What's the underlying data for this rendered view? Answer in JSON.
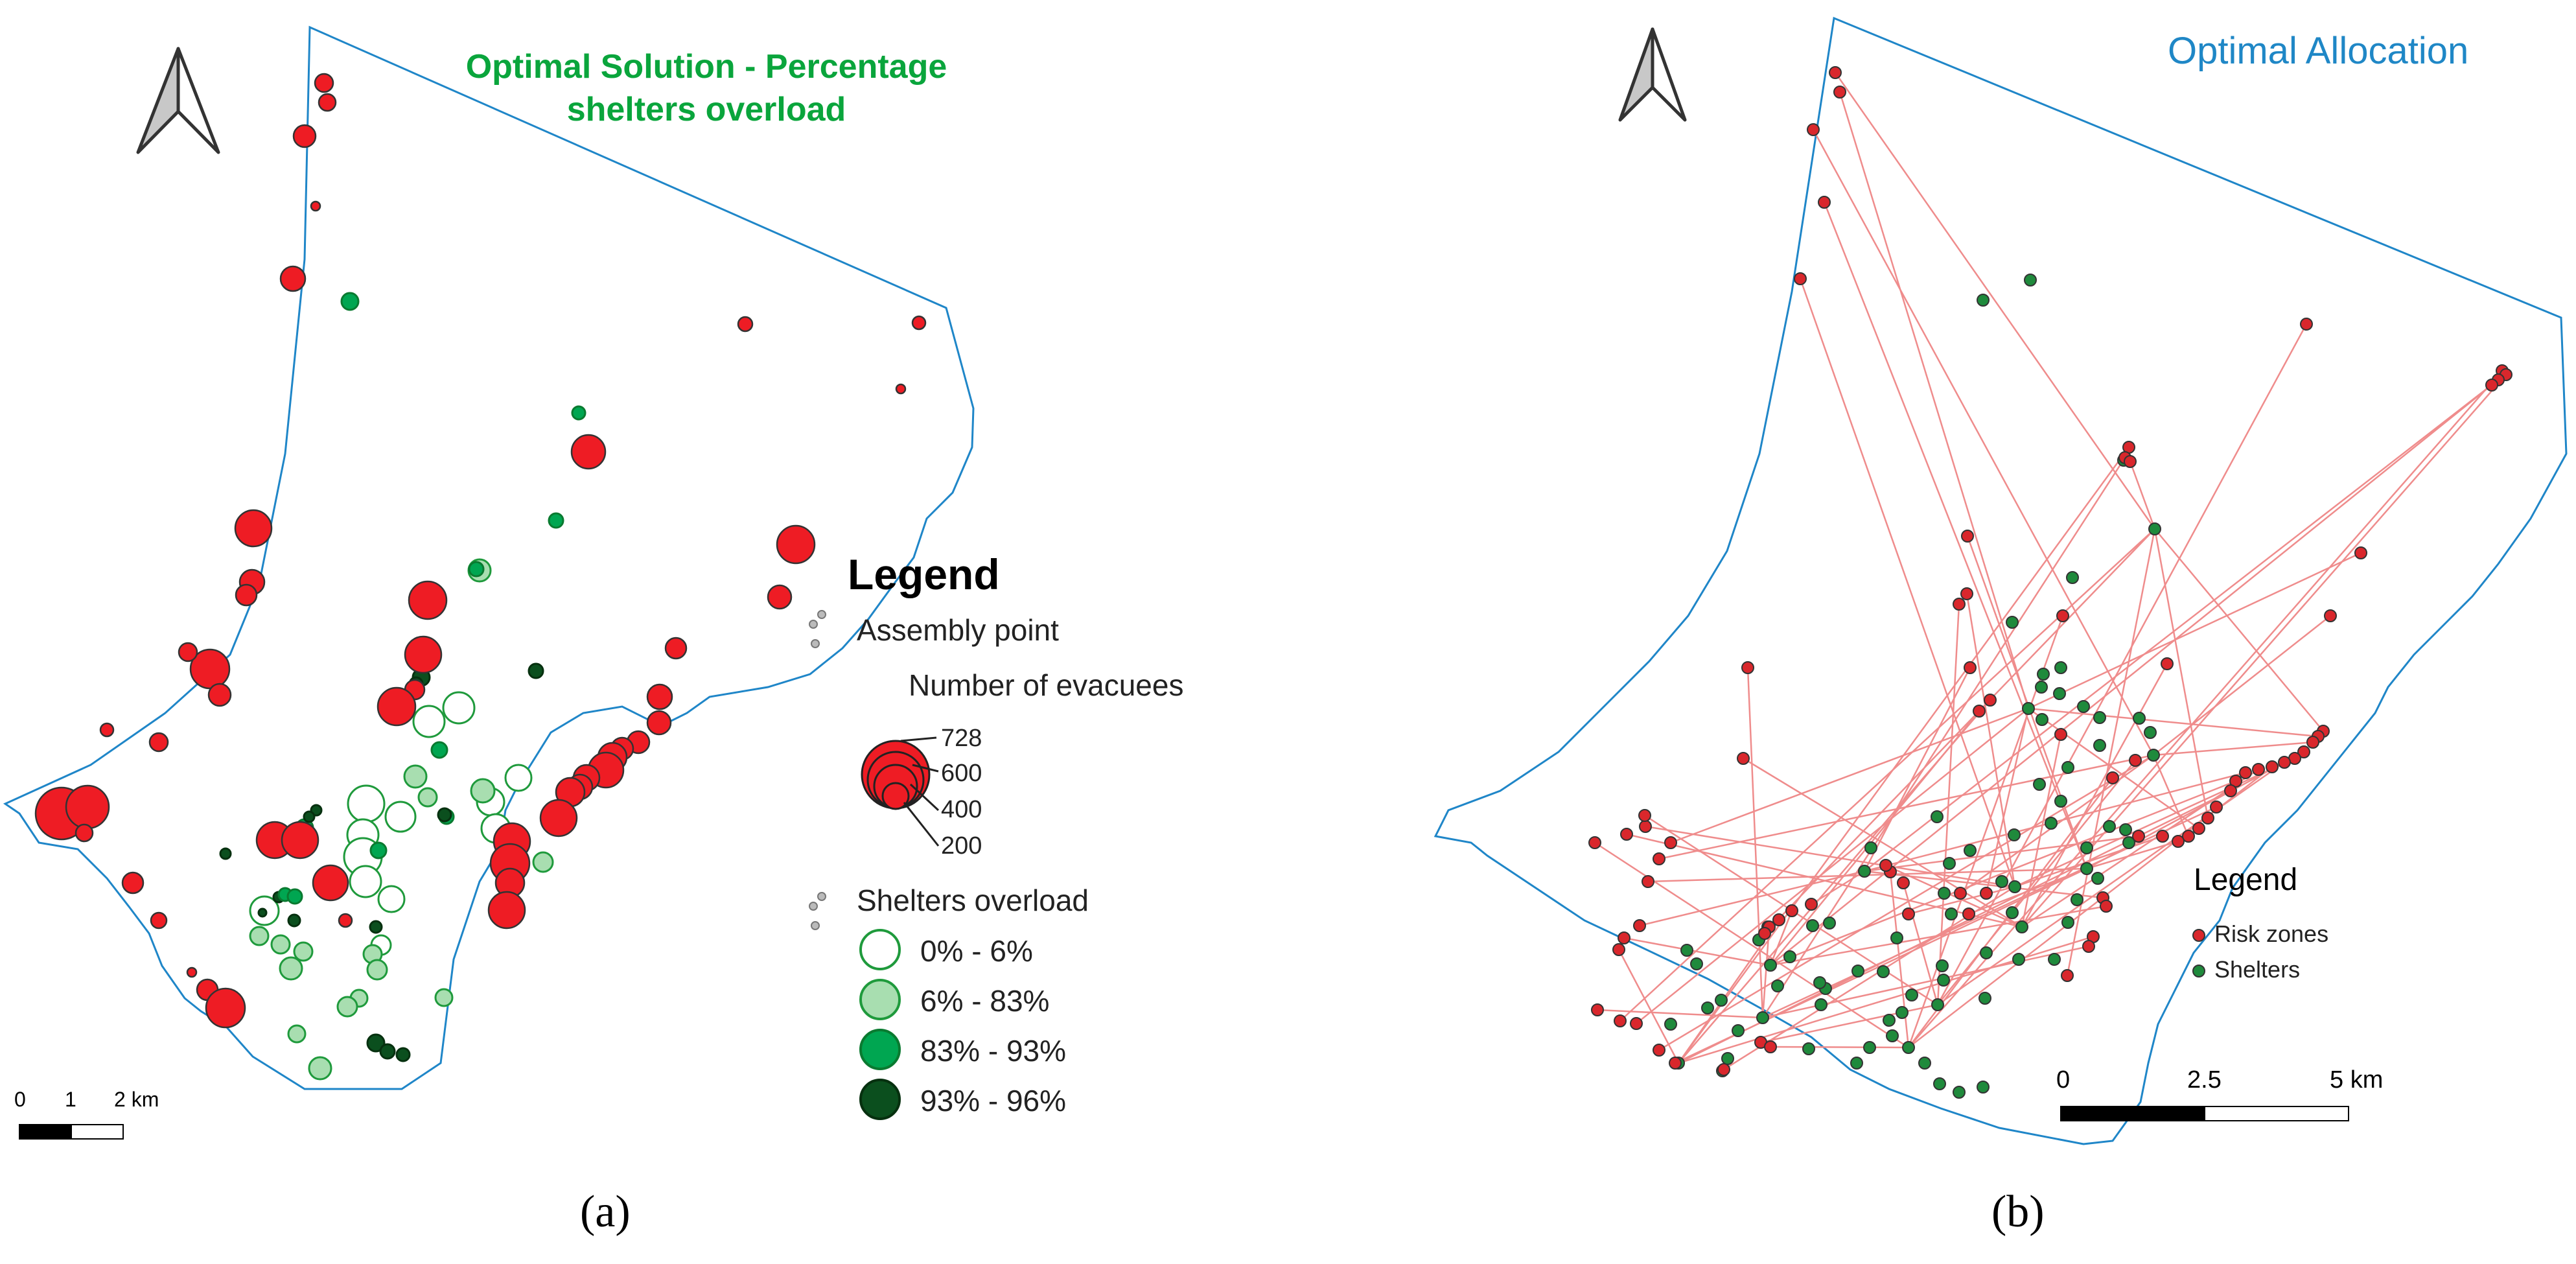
{
  "panel_a": {
    "title": "Optimal Solution - Percentage shelters overload",
    "caption": "(a)",
    "legend": {
      "title": "Legend",
      "assembly_label": "Assembly point",
      "size_title": "Number of evacuees",
      "size_values": [
        "728",
        "600",
        "400",
        "200"
      ],
      "overload_label": "Shelters overload",
      "overload_classes": [
        {
          "label": "0% - 6%",
          "fill": "#ffffff",
          "stroke": "#1f9a3c"
        },
        {
          "label": "6% - 83%",
          "fill": "#a8deb0",
          "stroke": "#1f9a3c"
        },
        {
          "label": "83% - 93%",
          "fill": "#00a651",
          "stroke": "#0a7a30"
        },
        {
          "label": "93% - 96%",
          "fill": "#0b4f1e",
          "stroke": "#06300f"
        }
      ]
    },
    "scale": {
      "labels": [
        "0",
        "1",
        "2 km"
      ]
    },
    "assembly_color": "#ee1c24",
    "boundary_color": "#1f86c8"
  },
  "panel_b": {
    "title": "Optimal Allocation",
    "caption": "(b)",
    "legend": {
      "title": "Legend",
      "items": [
        {
          "label": "Risk zones",
          "color": "#d9272c"
        },
        {
          "label": "Shelters",
          "color": "#1f8a3c"
        }
      ]
    },
    "scale": {
      "labels": [
        "0",
        "2.5",
        "5 km"
      ]
    },
    "link_color": "#ef8c8c"
  }
}
